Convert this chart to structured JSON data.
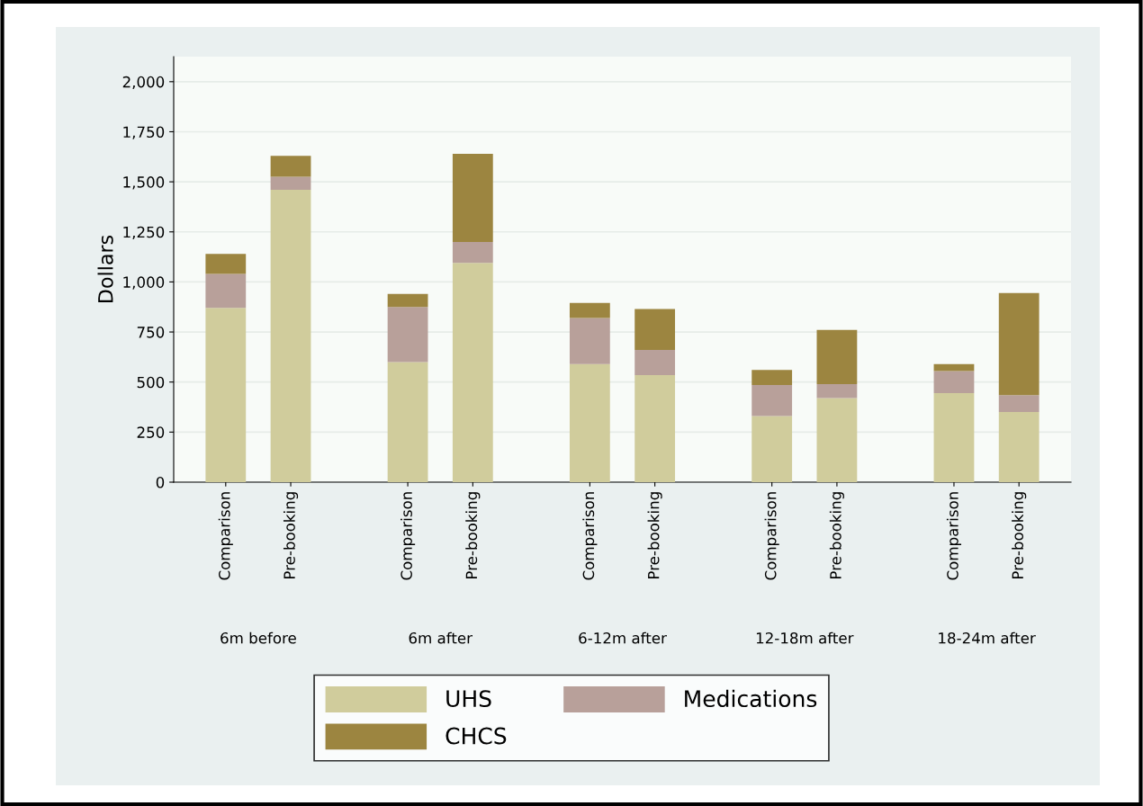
{
  "chart_data": {
    "type": "bar",
    "stacked": true,
    "ylabel": "Dollars",
    "categories": [
      "Comparison",
      "Pre-booking",
      "Comparison",
      "Pre-booking",
      "Comparison",
      "Pre-booking",
      "Comparison",
      "Pre-booking",
      "Comparison",
      "Pre-booking"
    ],
    "annotations": [
      "6m before",
      "6m after",
      "6-12m after",
      "12-18m after",
      "18-24m after"
    ],
    "series": [
      {
        "name": "UHS",
        "color": "#d0cc9c",
        "values": [
          870,
          1460,
          600,
          1095,
          590,
          535,
          330,
          420,
          445,
          350
        ]
      },
      {
        "name": "Medications",
        "color": "#b8a09a",
        "values": [
          170,
          65,
          275,
          105,
          230,
          125,
          155,
          70,
          110,
          85
        ]
      },
      {
        "name": "CHCS",
        "color": "#9c8540",
        "values": [
          100,
          105,
          65,
          440,
          75,
          205,
          75,
          270,
          35,
          510
        ]
      }
    ],
    "ylim": [
      0,
      2125
    ],
    "yticks": [
      0,
      250,
      500,
      750,
      {
        "value": 1000,
        "label": "1,000"
      },
      {
        "value": 1250,
        "label": "1,250"
      },
      {
        "value": 1500,
        "label": "1,500"
      },
      {
        "value": 1750,
        "label": "1,750"
      },
      {
        "value": 2000,
        "label": "2,000"
      }
    ],
    "grid": "y",
    "legend": "bottom"
  }
}
